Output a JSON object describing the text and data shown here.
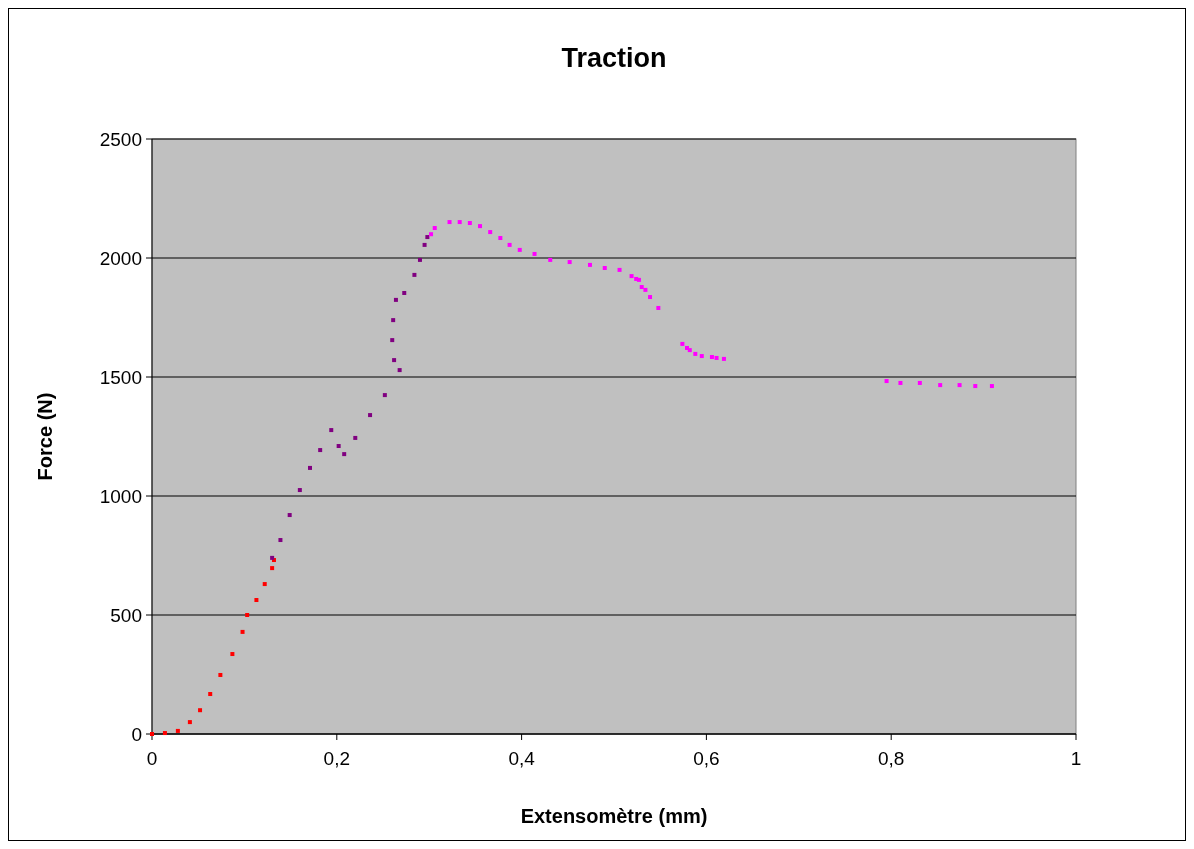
{
  "chart_data": {
    "type": "scatter",
    "title": "Traction",
    "xlabel": "Extensomètre (mm)",
    "ylabel": "Force (N)",
    "xlim": [
      0,
      1
    ],
    "ylim": [
      0,
      2500
    ],
    "xticks": [
      0,
      {
        "value": 0.2,
        "label": "0,2"
      },
      {
        "value": 0.4,
        "label": "0,4"
      },
      {
        "value": 0.6,
        "label": "0,6"
      },
      {
        "value": 0.8,
        "label": "0,8"
      },
      1
    ],
    "yticks": [
      0,
      500,
      1000,
      1500,
      2000,
      2500
    ],
    "grid": "y",
    "marker": "square",
    "series": [
      {
        "color": "#ff0000",
        "x": [
          0,
          0.014,
          0.028,
          0.041,
          0.052,
          0.063,
          0.074,
          0.087,
          0.098,
          0.103,
          0.113,
          0.122,
          0.13,
          0.132
        ],
        "values": [
          0,
          4,
          13,
          50,
          100,
          168,
          248,
          336,
          429,
          500,
          563,
          630,
          697,
          731
        ]
      },
      {
        "color": "#800080",
        "x": [
          0.13,
          0.139,
          0.149,
          0.16,
          0.171,
          0.182,
          0.194,
          0.202,
          0.208,
          0.22,
          0.236,
          0.252,
          0.268,
          0.262,
          0.26,
          0.261,
          0.264,
          0.273,
          0.284,
          0.29,
          0.295,
          0.298
        ],
        "values": [
          740,
          815,
          920,
          1025,
          1118,
          1193,
          1277,
          1210,
          1176,
          1244,
          1340,
          1424,
          1529,
          1571,
          1655,
          1739,
          1824,
          1853,
          1929,
          1992,
          2055,
          2088
        ]
      },
      {
        "color": "#ff00ff",
        "x": [
          0.302,
          0.306,
          0.322,
          0.333,
          0.344,
          0.355,
          0.366,
          0.377,
          0.387,
          0.398,
          0.414,
          0.431,
          0.452,
          0.474,
          0.49,
          0.506,
          0.519,
          0.524,
          0.527,
          0.53,
          0.534,
          0.539,
          0.548,
          0.574,
          0.579,
          0.582,
          0.588,
          0.595,
          0.606,
          0.611,
          0.619,
          0.795,
          0.81,
          0.831,
          0.853,
          0.874,
          0.891,
          0.909
        ],
        "values": [
          2100,
          2126,
          2151,
          2151,
          2147,
          2134,
          2109,
          2084,
          2055,
          2034,
          2017,
          1992,
          1983,
          1971,
          1958,
          1950,
          1924,
          1912,
          1908,
          1878,
          1866,
          1836,
          1790,
          1639,
          1622,
          1613,
          1597,
          1588,
          1584,
          1580,
          1576,
          1483,
          1475,
          1475,
          1466,
          1466,
          1462,
          1462
        ]
      }
    ]
  }
}
